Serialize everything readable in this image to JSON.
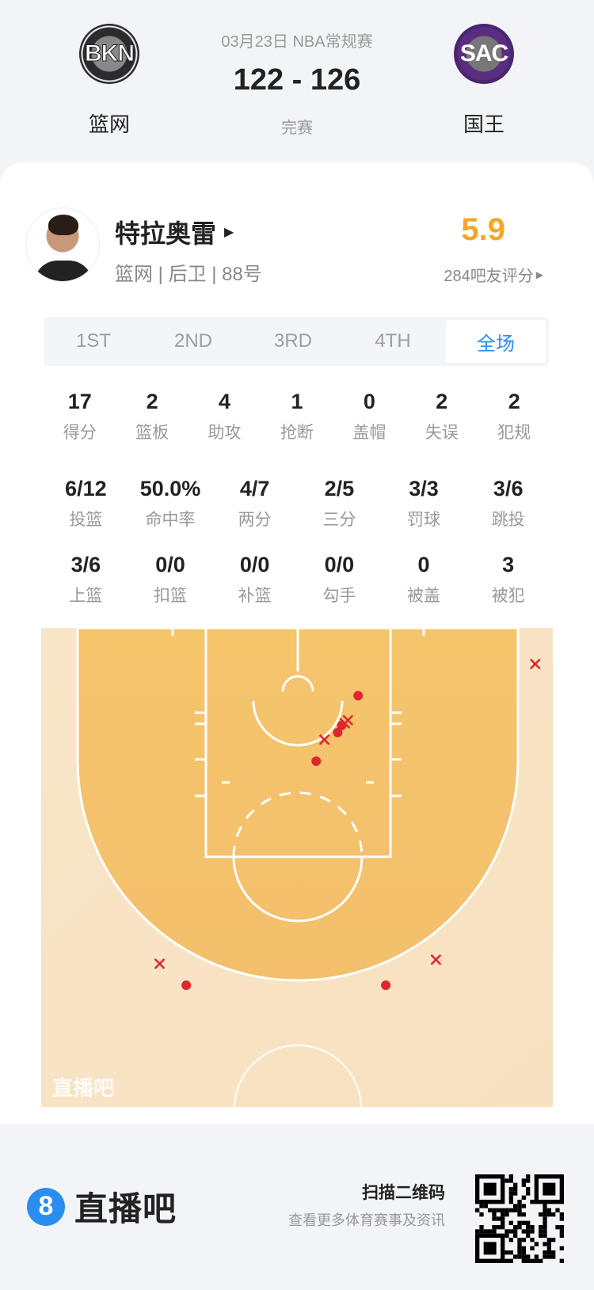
{
  "game": {
    "date_league": "03月23日 NBA常规赛",
    "score": "122 - 126",
    "status": "完赛",
    "home": {
      "abbr": "BKN",
      "name": "篮网",
      "color": "#2b2a2f"
    },
    "away": {
      "abbr": "SAC",
      "name": "国王",
      "color": "#5a2d81"
    }
  },
  "player": {
    "name": "特拉奥雷",
    "info": "篮网 | 后卫 | 88号",
    "rating": "5.9",
    "rating_color": "#f5a623",
    "rating_count": "284吧友评分"
  },
  "tabs": [
    {
      "label": "1ST"
    },
    {
      "label": "2ND"
    },
    {
      "label": "3RD"
    },
    {
      "label": "4TH"
    },
    {
      "label": "全场",
      "active": true
    }
  ],
  "stats_row1": [
    {
      "v": "17",
      "l": "得分"
    },
    {
      "v": "2",
      "l": "篮板"
    },
    {
      "v": "4",
      "l": "助攻"
    },
    {
      "v": "1",
      "l": "抢断"
    },
    {
      "v": "0",
      "l": "盖帽"
    },
    {
      "v": "2",
      "l": "失误"
    },
    {
      "v": "2",
      "l": "犯规"
    }
  ],
  "stats_row2": [
    {
      "v": "6/12",
      "l": "投篮"
    },
    {
      "v": "50.0%",
      "l": "命中率"
    },
    {
      "v": "4/7",
      "l": "两分"
    },
    {
      "v": "2/5",
      "l": "三分"
    },
    {
      "v": "3/3",
      "l": "罚球"
    },
    {
      "v": "3/6",
      "l": "跳投"
    }
  ],
  "stats_row3": [
    {
      "v": "3/6",
      "l": "上篮"
    },
    {
      "v": "0/0",
      "l": "扣篮"
    },
    {
      "v": "0/0",
      "l": "补篮"
    },
    {
      "v": "0/0",
      "l": "勾手"
    },
    {
      "v": "0",
      "l": "被盖"
    },
    {
      "v": "3",
      "l": "被犯"
    }
  ],
  "shot_chart": {
    "watermark": "直播吧",
    "made_color": "#e0262f",
    "miss_color": "#e0262f",
    "shots_feet_from_basket": [
      {
        "x": 23.2,
        "y": -1.9,
        "made": false
      },
      {
        "x": 5.9,
        "y": 1.2,
        "made": true
      },
      {
        "x": 4.6,
        "y": 3.9,
        "made": false
      },
      {
        "x": 4.9,
        "y": 3.6,
        "made": false
      },
      {
        "x": 4.3,
        "y": 4.1,
        "made": true
      },
      {
        "x": 3.9,
        "y": 4.8,
        "made": true
      },
      {
        "x": 2.6,
        "y": 5.5,
        "made": false
      },
      {
        "x": 1.8,
        "y": 7.6,
        "made": true
      },
      {
        "x": -13.5,
        "y": 27.4,
        "made": false
      },
      {
        "x": -10.9,
        "y": 29.5,
        "made": true
      },
      {
        "x": 13.5,
        "y": 27.0,
        "made": false
      },
      {
        "x": 8.6,
        "y": 29.5,
        "made": true
      }
    ]
  },
  "footer": {
    "brand": "直播吧",
    "brand_icon": "8",
    "scan": "扫描二维码",
    "sub": "查看更多体育赛事及资讯"
  }
}
